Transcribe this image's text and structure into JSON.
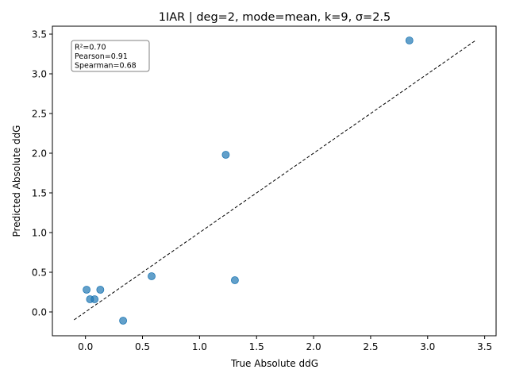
{
  "chart_data": {
    "type": "scatter",
    "title": "1IAR | deg=2, mode=mean, k=9, σ=2.5",
    "xlabel": "True Absolute ddG",
    "ylabel": "Predicted Absolute ddG",
    "xlim": [
      -0.29,
      3.6
    ],
    "ylim": [
      -0.3,
      3.6
    ],
    "xticks": [
      0.0,
      0.5,
      1.0,
      1.5,
      2.0,
      2.5,
      3.0,
      3.5
    ],
    "xtick_labels": [
      "0.0",
      "0.5",
      "1.0",
      "1.5",
      "2.0",
      "2.5",
      "3.0",
      "3.5"
    ],
    "yticks": [
      0.0,
      0.5,
      1.0,
      1.5,
      2.0,
      2.5,
      3.0,
      3.5
    ],
    "ytick_labels": [
      "0.0",
      "0.5",
      "1.0",
      "1.5",
      "2.0",
      "2.5",
      "3.0",
      "3.5"
    ],
    "grid": false,
    "points": [
      {
        "x": 0.01,
        "y": 0.28
      },
      {
        "x": 0.04,
        "y": 0.16
      },
      {
        "x": 0.08,
        "y": 0.16
      },
      {
        "x": 0.13,
        "y": 0.28
      },
      {
        "x": 0.33,
        "y": -0.11
      },
      {
        "x": 0.58,
        "y": 0.45
      },
      {
        "x": 1.23,
        "y": 1.98
      },
      {
        "x": 1.31,
        "y": 0.4
      },
      {
        "x": 2.84,
        "y": 3.42
      }
    ],
    "reference_line": {
      "style": "dashed",
      "color": "#000000",
      "from": [
        -0.1,
        -0.1
      ],
      "to": [
        3.42,
        3.42
      ]
    },
    "point_color": "#1f77b4",
    "stats_box": {
      "lines": [
        "R²=0.70",
        "Pearson=0.91",
        "Spearman=0.68"
      ],
      "placement": "top-left"
    }
  }
}
